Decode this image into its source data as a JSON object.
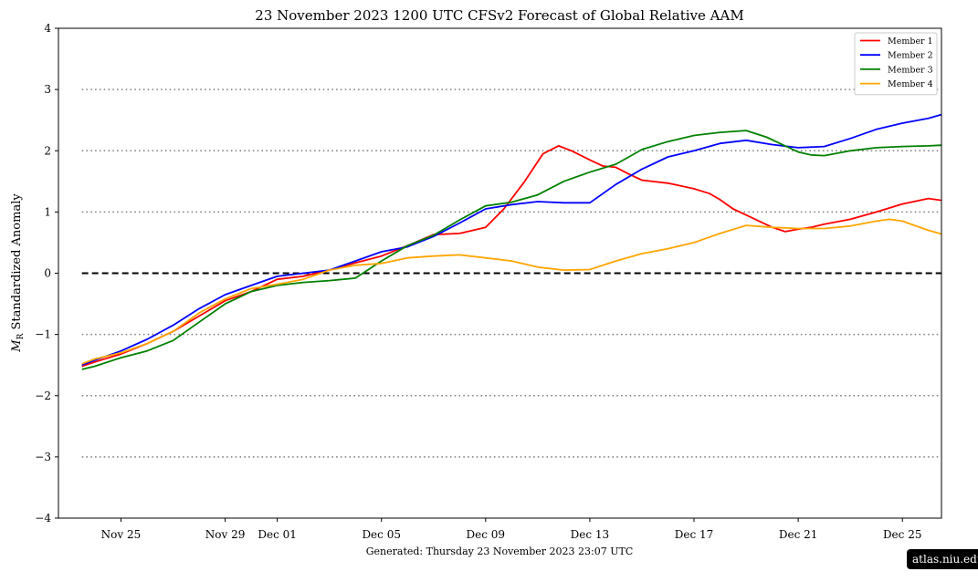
{
  "footer": {
    "generated": "Generated: Thursday  23  November  2023  23:07 UTC"
  },
  "watermark": "atlas.niu.edu",
  "chart_data": {
    "type": "line",
    "title": "23  November  2023 1200 UTC   CFSv2 Forecast of Global Relative AAM",
    "xlabel": "",
    "ylabel_symbol": "M",
    "ylabel_subscript": "R",
    "ylabel": "Standardized Anomaly",
    "xlim": [
      -2.4,
      31.5
    ],
    "ylim": [
      -4,
      4
    ],
    "yticks": [
      -4,
      -3,
      -2,
      -1,
      0,
      1,
      2,
      3,
      4
    ],
    "ytick_labels": [
      "−4",
      "−3",
      "−2",
      "−1",
      "0",
      "1",
      "2",
      "3",
      "4"
    ],
    "xticks": [
      {
        "day": 0,
        "label": "Nov 25"
      },
      {
        "day": 4,
        "label": "Nov 29"
      },
      {
        "day": 6,
        "label": "Dec 01"
      },
      {
        "day": 10,
        "label": "Dec 05"
      },
      {
        "day": 14,
        "label": "Dec 09"
      },
      {
        "day": 18,
        "label": "Dec 13"
      },
      {
        "day": 22,
        "label": "Dec 17"
      },
      {
        "day": 26,
        "label": "Dec 21"
      },
      {
        "day": 30,
        "label": "Dec 25"
      }
    ],
    "hlines_dotted": [
      -3,
      -2,
      -1,
      1,
      2,
      3
    ],
    "hline_dashed": 0,
    "x_unit": "days since Nov 25 2023",
    "legend_position": "top-right",
    "series": [
      {
        "name": "Member 1",
        "color": "#ff0000",
        "x": [
          -1.5,
          -1,
          0,
          1,
          2,
          3,
          4,
          5,
          6,
          7,
          8,
          9,
          10,
          11,
          12,
          13,
          14,
          14.7,
          15.5,
          16.2,
          16.8,
          17.3,
          18,
          18.5,
          19,
          19.5,
          20,
          21,
          22,
          22.6,
          23,
          23.5,
          24,
          25,
          25.5,
          26,
          26.5,
          27,
          28,
          29,
          30,
          31,
          31.5
        ],
        "y": [
          -1.52,
          -1.45,
          -1.32,
          -1.15,
          -0.95,
          -0.7,
          -0.45,
          -0.3,
          -0.1,
          -0.05,
          0.05,
          0.17,
          0.28,
          0.45,
          0.63,
          0.65,
          0.75,
          1.05,
          1.5,
          1.95,
          2.08,
          2.0,
          1.85,
          1.75,
          1.73,
          1.62,
          1.52,
          1.47,
          1.38,
          1.3,
          1.2,
          1.05,
          0.95,
          0.75,
          0.68,
          0.72,
          0.75,
          0.8,
          0.88,
          1.0,
          1.13,
          1.22,
          1.19
        ]
      },
      {
        "name": "Member 2",
        "color": "#0000ff",
        "x": [
          -1.5,
          -1,
          0,
          1,
          2,
          3,
          4,
          5,
          6,
          7,
          8,
          9,
          10,
          11,
          12,
          13,
          14,
          15,
          16,
          17,
          18,
          19,
          20,
          21,
          22,
          23,
          24,
          25,
          26,
          27,
          28,
          29,
          30,
          31,
          31.5
        ],
        "y": [
          -1.5,
          -1.42,
          -1.27,
          -1.08,
          -0.85,
          -0.58,
          -0.35,
          -0.2,
          -0.05,
          0.0,
          0.05,
          0.2,
          0.35,
          0.43,
          0.6,
          0.82,
          1.05,
          1.12,
          1.17,
          1.15,
          1.15,
          1.45,
          1.7,
          1.9,
          2.0,
          2.12,
          2.17,
          2.1,
          2.05,
          2.07,
          2.2,
          2.35,
          2.45,
          2.53,
          2.59
        ]
      },
      {
        "name": "Member 3",
        "color": "#008000",
        "x": [
          -1.5,
          -1,
          0,
          1,
          2,
          3,
          4,
          5,
          6,
          7,
          8,
          9,
          10,
          11,
          12,
          13,
          14,
          15,
          16,
          17,
          18,
          19,
          19.5,
          20,
          21,
          22,
          23,
          24,
          24.8,
          25.5,
          26,
          26.5,
          27,
          28,
          29,
          30,
          31,
          31.5
        ],
        "y": [
          -1.57,
          -1.52,
          -1.38,
          -1.27,
          -1.1,
          -0.8,
          -0.5,
          -0.3,
          -0.2,
          -0.15,
          -0.12,
          -0.08,
          0.2,
          0.45,
          0.62,
          0.87,
          1.1,
          1.16,
          1.28,
          1.5,
          1.65,
          1.78,
          1.9,
          2.02,
          2.15,
          2.25,
          2.3,
          2.33,
          2.22,
          2.08,
          1.98,
          1.93,
          1.92,
          2.0,
          2.05,
          2.07,
          2.08,
          2.09
        ]
      },
      {
        "name": "Member 4",
        "color": "#ffa500",
        "x": [
          -1.5,
          -1,
          0,
          1,
          2,
          3,
          4,
          5,
          6,
          7,
          8,
          9,
          10,
          11,
          12,
          13,
          14,
          15,
          16,
          17,
          18,
          19,
          20,
          21,
          22,
          23,
          24,
          25,
          26,
          27,
          28,
          29,
          29.5,
          30,
          31,
          31.5
        ],
        "y": [
          -1.48,
          -1.4,
          -1.3,
          -1.15,
          -0.95,
          -0.65,
          -0.42,
          -0.25,
          -0.18,
          -0.1,
          0.05,
          0.13,
          0.16,
          0.25,
          0.28,
          0.3,
          0.25,
          0.2,
          0.1,
          0.05,
          0.06,
          0.2,
          0.32,
          0.4,
          0.5,
          0.65,
          0.78,
          0.75,
          0.73,
          0.73,
          0.77,
          0.85,
          0.88,
          0.85,
          0.7,
          0.64
        ]
      }
    ]
  }
}
